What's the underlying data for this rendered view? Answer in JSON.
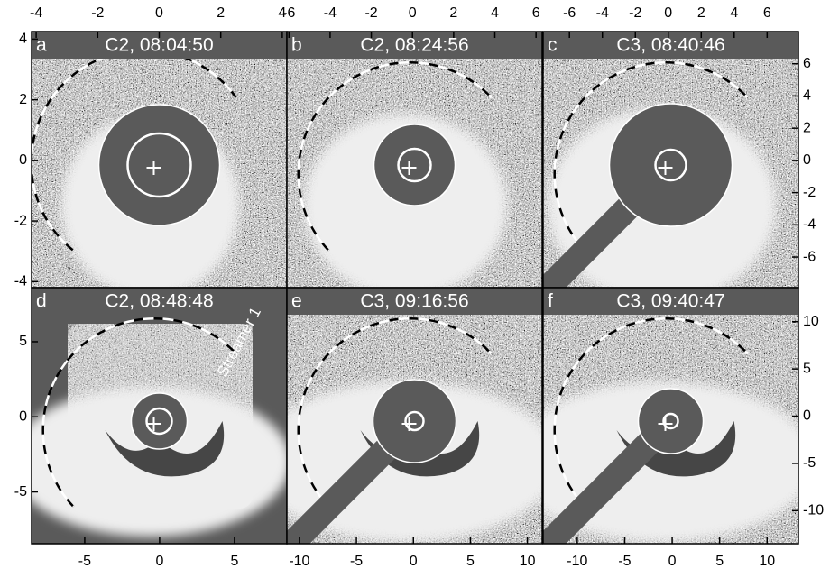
{
  "chart_data": [
    {
      "type": "image",
      "label": "a",
      "title": "C2, 08:04:50",
      "xlim": [
        -4.15,
        4.15
      ],
      "ylim": [
        -4.2,
        4.25
      ],
      "xticks": [
        -4,
        -2,
        0,
        2,
        4
      ],
      "yticks": [
        -4,
        -2,
        0,
        2,
        4
      ]
    },
    {
      "type": "image",
      "label": "b",
      "title": "C2, 08:24:56",
      "xlim": [
        -6.1,
        6.3
      ],
      "xticks": [
        -6,
        -4,
        -2,
        0,
        2,
        4,
        6
      ]
    },
    {
      "type": "image",
      "label": "c",
      "title": "C3, 08:40:46",
      "xlim": [
        -7.6,
        7.9
      ],
      "ylim": [
        -7.9,
        8.0
      ],
      "xticks": [
        -6,
        -4,
        -2,
        0,
        2,
        4,
        6
      ],
      "yticks": [
        -6,
        -4,
        -2,
        0,
        2,
        4,
        6
      ]
    },
    {
      "type": "image",
      "label": "d",
      "title": "C2, 08:48:48",
      "annotation": "Streamer 1",
      "xlim": [
        -8.55,
        8.5
      ],
      "ylim": [
        -8.45,
        8.6
      ],
      "xticks": [
        -5,
        0,
        5
      ],
      "yticks": [
        -5,
        0,
        5
      ]
    },
    {
      "type": "image",
      "label": "e",
      "title": "C3, 09:16:56",
      "xlim": [
        -11.1,
        11.3
      ],
      "xticks": [
        -10,
        -5,
        0,
        5,
        10
      ]
    },
    {
      "type": "image",
      "label": "f",
      "title": "C3, 09:40:47",
      "xlim": [
        -13.6,
        13.3
      ],
      "ylim": [
        -13.5,
        13.6
      ],
      "xticks": [
        -10,
        -5,
        0,
        5,
        10
      ],
      "yticks": [
        -10,
        -5,
        0,
        5,
        10
      ]
    }
  ]
}
